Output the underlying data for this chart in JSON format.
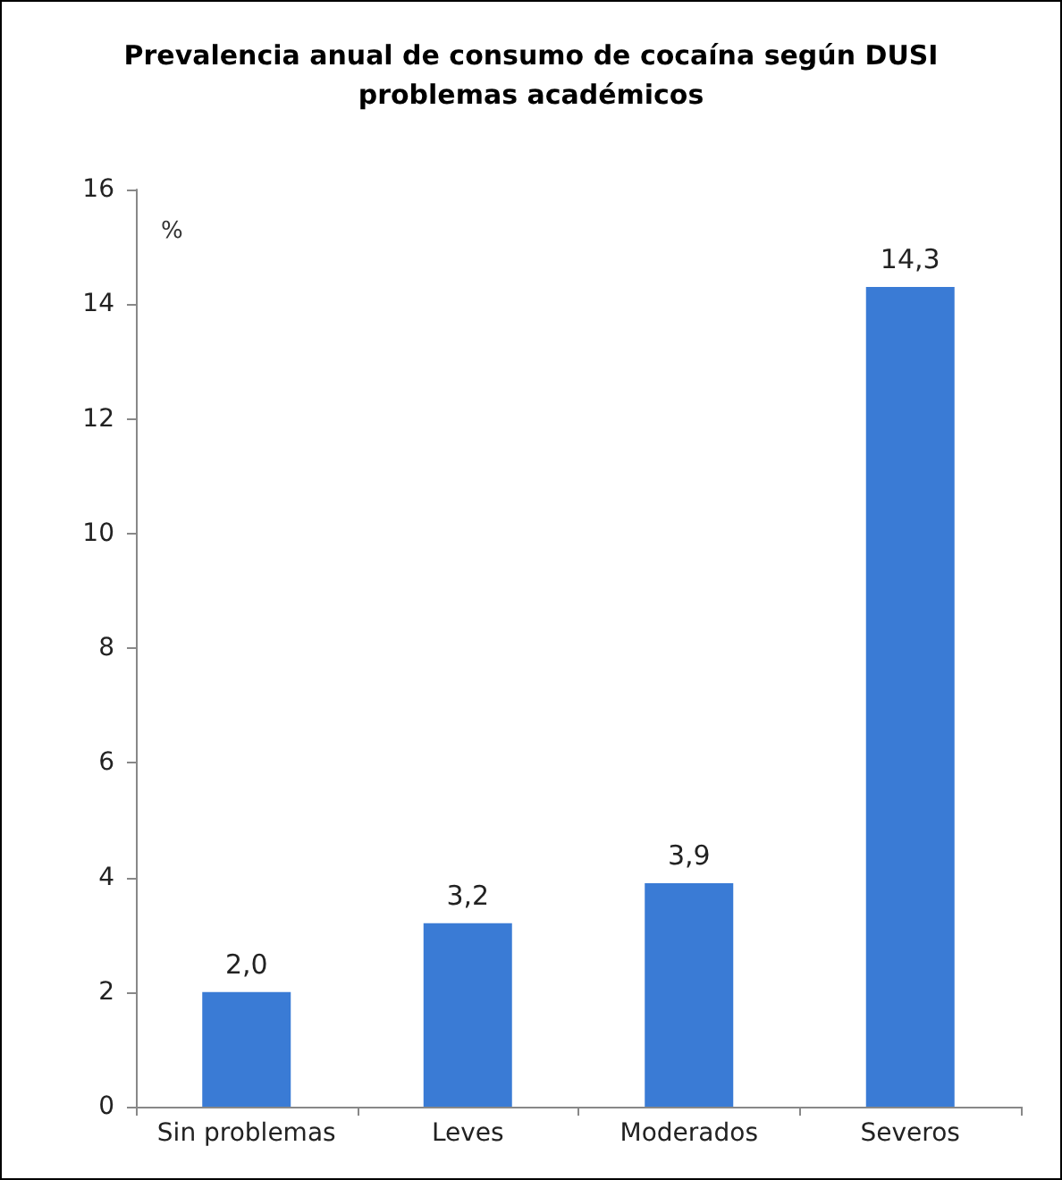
{
  "chart_data": {
    "type": "bar",
    "title": "Prevalencia anual de consumo de cocaína según DUSI\nproblemas académicos",
    "ylabel": "%",
    "categories": [
      "Sin problemas",
      "Leves",
      "Moderados",
      "Severos"
    ],
    "values": [
      2.0,
      3.2,
      3.9,
      14.3
    ],
    "value_labels": [
      "2,0",
      "3,2",
      "3,9",
      "14,3"
    ],
    "color": "#3a7bd5",
    "ylim": [
      0,
      16
    ],
    "yticks": [
      0,
      2,
      4,
      6,
      8,
      10,
      12,
      14,
      16
    ],
    "grid": false
  }
}
